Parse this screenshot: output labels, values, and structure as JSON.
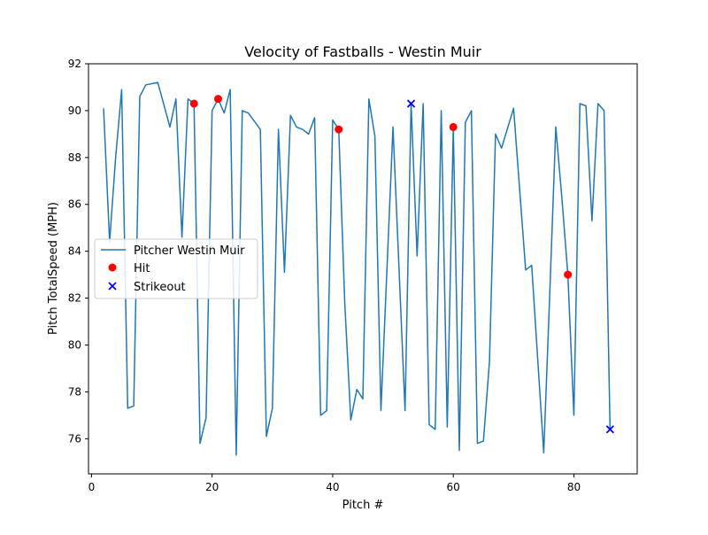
{
  "chart_data": {
    "type": "line",
    "title": "Velocity of Fastballs - Westin Muir",
    "xlabel": "Pitch #",
    "ylabel": "Pitch TotalSpeed (MPH)",
    "xlim": [
      -0.5,
      90.5
    ],
    "ylim": [
      74.5,
      92
    ],
    "xticks": [
      0,
      20,
      40,
      60,
      80
    ],
    "yticks": [
      76,
      78,
      80,
      82,
      84,
      86,
      88,
      90,
      92
    ],
    "grid": false,
    "legend_position": "center-left",
    "colors": {
      "line": "#1f77b4",
      "hit": "#ff0000",
      "strikeout": "#0000ff",
      "axis": "#000000"
    },
    "series": [
      {
        "name": "Pitcher Westin Muir",
        "kind": "line",
        "x": [
          2,
          3,
          4,
          5,
          6,
          7,
          8,
          9,
          11,
          13,
          14,
          15,
          16,
          17,
          18,
          19,
          20,
          21,
          22,
          23,
          24,
          25,
          26,
          28,
          29,
          30,
          31,
          32,
          33,
          34,
          35,
          36,
          37,
          38,
          39,
          40,
          41,
          42,
          43,
          44,
          45,
          46,
          47,
          48,
          50,
          52,
          53,
          54,
          55,
          56,
          57,
          58,
          59,
          60,
          61,
          62,
          63,
          64,
          65,
          66,
          67,
          68,
          70,
          72,
          73,
          75,
          76,
          77,
          78,
          79,
          80,
          81,
          82,
          83,
          84,
          85,
          86
        ],
        "y": [
          90.1,
          84.4,
          88.0,
          90.9,
          77.3,
          77.4,
          90.6,
          91.1,
          91.2,
          89.3,
          90.5,
          84.6,
          90.5,
          90.3,
          75.8,
          76.9,
          90.0,
          90.5,
          89.9,
          90.9,
          75.3,
          90.0,
          89.9,
          89.2,
          76.1,
          77.3,
          89.2,
          83.1,
          89.8,
          89.3,
          89.2,
          89.0,
          89.7,
          77.0,
          77.2,
          89.6,
          89.2,
          81.8,
          76.8,
          78.1,
          77.7,
          90.5,
          88.9,
          77.2,
          89.3,
          77.2,
          90.3,
          83.8,
          90.3,
          76.6,
          76.4,
          90.0,
          76.5,
          89.3,
          75.5,
          89.5,
          90.0,
          75.8,
          75.9,
          79.3,
          89.0,
          88.4,
          90.1,
          83.2,
          83.4,
          75.4,
          82.2,
          89.3,
          86.3,
          83.0,
          77.0,
          90.3,
          90.2,
          85.3,
          90.3,
          90.0,
          76.4
        ]
      },
      {
        "name": "Hit",
        "kind": "scatter",
        "marker": "circle",
        "x": [
          17,
          21,
          41,
          60,
          79
        ],
        "y": [
          90.3,
          90.5,
          89.2,
          89.3,
          83.0
        ]
      },
      {
        "name": "Strikeout",
        "kind": "scatter",
        "marker": "x",
        "x": [
          53,
          86
        ],
        "y": [
          90.3,
          76.4
        ]
      }
    ]
  }
}
